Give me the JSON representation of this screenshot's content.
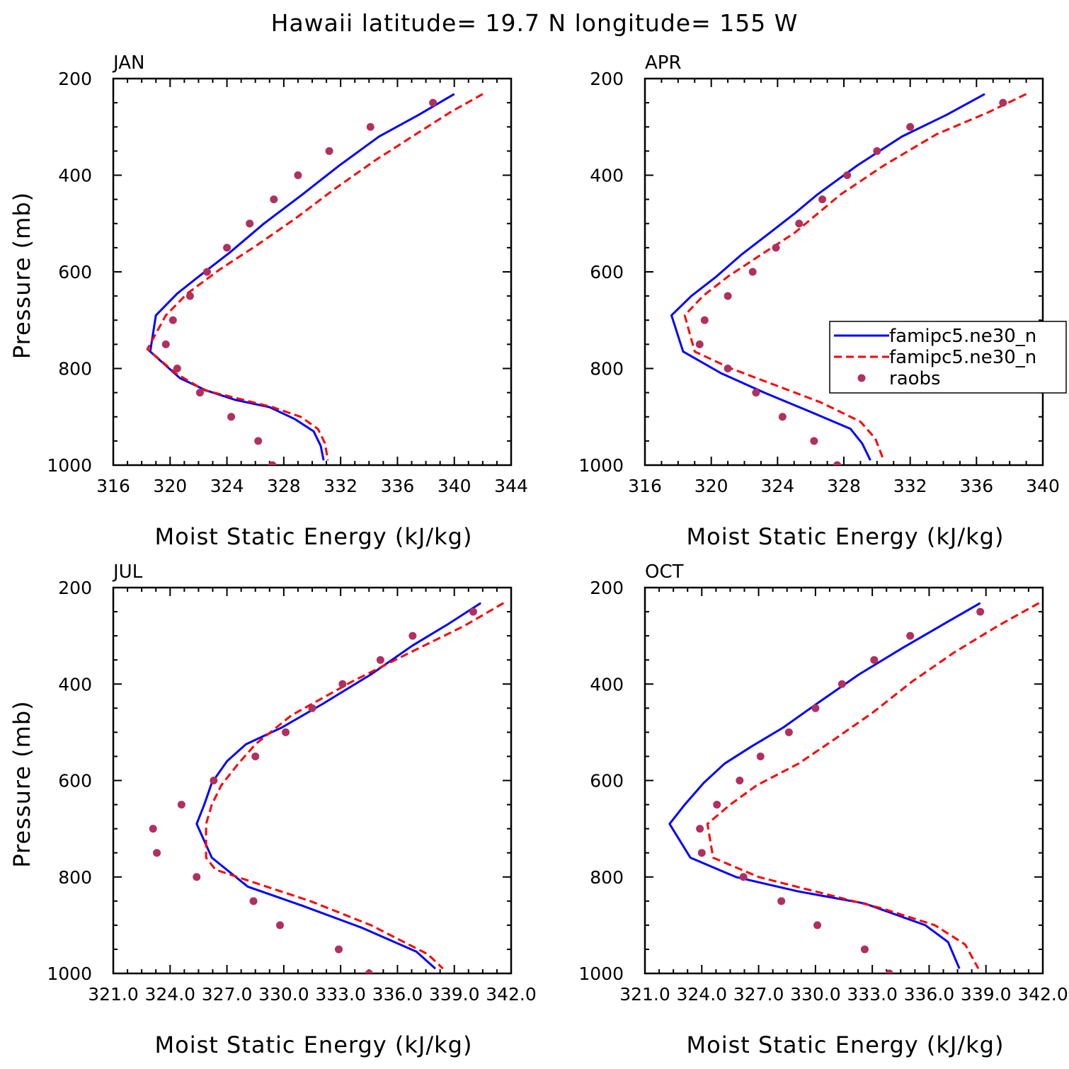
{
  "title": "Hawaii  latitude= 19.7 N longitude= 155 W",
  "colors": {
    "series1": "#0000ff",
    "series2": "#ff0000",
    "raobs": "#b03060"
  },
  "legend": {
    "entries": [
      {
        "label": "famipc5.ne30_n",
        "style": "solid",
        "color": "#0000ff"
      },
      {
        "label": "famipc5.ne30_n",
        "style": "dashed",
        "color": "#ff0000"
      },
      {
        "label": "raobs",
        "style": "marker",
        "color": "#b03060"
      }
    ]
  },
  "chart_data": [
    {
      "type": "line",
      "panel_title": "JAN",
      "xlabel": "Moist Static Energy (kJ/kg)",
      "ylabel": "Pressure (mb)",
      "xlim": [
        316,
        344
      ],
      "ylim": [
        1000,
        200
      ],
      "xticks": [
        316,
        320,
        324,
        328,
        332,
        336,
        340,
        344
      ],
      "xtick_labels": [
        "316",
        "320",
        "324",
        "328",
        "332",
        "336",
        "340",
        "344"
      ],
      "yticks": [
        200,
        400,
        600,
        800,
        1000
      ],
      "ytick_labels": [
        "200",
        "400",
        "600",
        "800",
        "1000"
      ],
      "series": [
        {
          "name": "famipc5.ne30_n",
          "style": "solid",
          "x": [
            340.0,
            337.5,
            334.7,
            331.9,
            329.3,
            326.6,
            324.2,
            322.0,
            320.5,
            319.0,
            318.6,
            320.7,
            322.5,
            324.6,
            327.0,
            328.8,
            330.1,
            330.6,
            330.8
          ],
          "y": [
            232,
            275,
            320,
            380,
            440,
            500,
            560,
            610,
            645,
            690,
            765,
            820,
            845,
            865,
            880,
            905,
            930,
            960,
            990
          ]
        },
        {
          "name": "famipc5.ne30_n",
          "style": "dashed",
          "x": [
            342.0,
            339.7,
            337.3,
            334.4,
            331.5,
            328.8,
            326.1,
            323.5,
            321.2,
            319.7,
            318.4,
            320.4,
            322.4,
            324.5,
            327.2,
            329.2,
            330.4,
            330.9,
            331.1
          ],
          "y": [
            232,
            270,
            315,
            370,
            430,
            490,
            545,
            595,
            645,
            690,
            760,
            810,
            845,
            860,
            880,
            900,
            925,
            955,
            990
          ]
        },
        {
          "name": "raobs",
          "style": "marker",
          "x": [
            338.5,
            334.1,
            331.2,
            329.0,
            327.3,
            325.6,
            324.0,
            322.6,
            321.4,
            320.2,
            319.7,
            320.5,
            322.1,
            324.3,
            326.2,
            327.2
          ],
          "y": [
            250,
            300,
            350,
            400,
            450,
            500,
            550,
            600,
            650,
            700,
            750,
            800,
            850,
            900,
            950,
            1000
          ]
        }
      ]
    },
    {
      "type": "line",
      "panel_title": "APR",
      "xlabel": "Moist Static Energy (kJ/kg)",
      "ylabel": "",
      "xlim": [
        316,
        340
      ],
      "ylim": [
        1000,
        200
      ],
      "xticks": [
        316,
        320,
        324,
        328,
        332,
        336,
        340
      ],
      "xtick_labels": [
        "316",
        "320",
        "324",
        "328",
        "332",
        "336",
        "340"
      ],
      "yticks": [
        200,
        400,
        600,
        800,
        1000
      ],
      "ytick_labels": [
        "200",
        "400",
        "600",
        "800",
        "1000"
      ],
      "series": [
        {
          "name": "famipc5.ne30_n",
          "style": "solid",
          "x": [
            336.5,
            334.2,
            331.5,
            328.8,
            326.4,
            325.0,
            323.5,
            321.8,
            320.3,
            318.8,
            317.6,
            318.3,
            320.6,
            323.2,
            326.0,
            328.4,
            329.1,
            329.6
          ],
          "y": [
            232,
            275,
            320,
            380,
            440,
            480,
            520,
            565,
            610,
            650,
            690,
            765,
            810,
            850,
            890,
            925,
            955,
            990
          ]
        },
        {
          "name": "famipc5.ne30_n",
          "style": "dashed",
          "x": [
            339.0,
            336.7,
            333.6,
            330.4,
            327.8,
            326.4,
            325.0,
            323.2,
            321.0,
            319.5,
            318.4,
            319.0,
            321.2,
            323.9,
            326.6,
            329.0,
            329.9,
            330.4
          ],
          "y": [
            232,
            270,
            315,
            380,
            440,
            480,
            520,
            560,
            610,
            650,
            690,
            765,
            800,
            835,
            870,
            910,
            945,
            990
          ]
        },
        {
          "name": "raobs",
          "style": "marker",
          "x": [
            337.6,
            332.0,
            330.0,
            328.2,
            326.7,
            325.3,
            323.9,
            322.5,
            321.0,
            319.6,
            319.3,
            321.0,
            322.7,
            324.3,
            326.2,
            327.6
          ],
          "y": [
            250,
            300,
            350,
            400,
            450,
            500,
            550,
            600,
            650,
            700,
            750,
            800,
            850,
            900,
            950,
            1000
          ]
        }
      ]
    },
    {
      "type": "line",
      "panel_title": "JUL",
      "xlabel": "Moist Static Energy (kJ/kg)",
      "ylabel": "Pressure (mb)",
      "xlim": [
        321.0,
        342.0
      ],
      "ylim": [
        1000,
        200
      ],
      "xticks": [
        321.0,
        324.0,
        327.0,
        330.0,
        333.0,
        336.0,
        339.0,
        342.0
      ],
      "xtick_labels": [
        "321.0",
        "324.0",
        "327.0",
        "330.0",
        "333.0",
        "336.0",
        "339.0",
        "342.0"
      ],
      "yticks": [
        200,
        400,
        600,
        800,
        1000
      ],
      "ytick_labels": [
        "200",
        "400",
        "600",
        "800",
        "1000"
      ],
      "series": [
        {
          "name": "famipc5.ne30_n",
          "style": "solid",
          "x": [
            340.4,
            338.7,
            336.8,
            334.6,
            332.1,
            329.9,
            328.0,
            327.0,
            326.2,
            325.8,
            325.4,
            326.2,
            328.1,
            331.0,
            334.1,
            337.0,
            338.0
          ],
          "y": [
            232,
            275,
            320,
            380,
            440,
            490,
            525,
            560,
            605,
            650,
            690,
            760,
            820,
            860,
            905,
            955,
            990
          ]
        },
        {
          "name": "famipc5.ne30_n",
          "style": "dashed",
          "x": [
            341.6,
            339.5,
            336.9,
            333.6,
            330.4,
            328.5,
            327.6,
            326.7,
            326.2,
            325.9,
            325.9,
            326.4,
            328.7,
            331.4,
            334.6,
            337.6,
            338.4
          ],
          "y": [
            232,
            280,
            330,
            395,
            465,
            525,
            565,
            610,
            650,
            690,
            760,
            785,
            815,
            850,
            900,
            960,
            990
          ]
        },
        {
          "name": "raobs",
          "style": "marker",
          "x": [
            340.0,
            336.8,
            335.1,
            333.1,
            331.5,
            330.1,
            328.5,
            326.3,
            324.6,
            323.1,
            323.3,
            325.4,
            328.4,
            329.8,
            332.9,
            334.5
          ],
          "y": [
            250,
            300,
            350,
            400,
            450,
            500,
            550,
            600,
            650,
            700,
            750,
            800,
            850,
            900,
            950,
            1000
          ]
        }
      ]
    },
    {
      "type": "line",
      "panel_title": "OCT",
      "xlabel": "Moist Static Energy (kJ/kg)",
      "ylabel": "",
      "xlim": [
        321.0,
        342.0
      ],
      "ylim": [
        1000,
        200
      ],
      "xticks": [
        321.0,
        324.0,
        327.0,
        330.0,
        333.0,
        336.0,
        339.0,
        342.0
      ],
      "xtick_labels": [
        "321.0",
        "324.0",
        "327.0",
        "330.0",
        "333.0",
        "336.0",
        "339.0",
        "342.0"
      ],
      "yticks": [
        200,
        400,
        600,
        800,
        1000
      ],
      "ytick_labels": [
        "200",
        "400",
        "600",
        "800",
        "1000"
      ],
      "series": [
        {
          "name": "famipc5.ne30_n",
          "style": "solid",
          "x": [
            338.7,
            336.8,
            334.6,
            332.3,
            330.1,
            328.3,
            326.6,
            325.2,
            324.1,
            323.1,
            322.3,
            323.4,
            325.8,
            329.1,
            332.6,
            335.8,
            337.0,
            337.6
          ],
          "y": [
            232,
            275,
            325,
            380,
            440,
            490,
            530,
            565,
            605,
            650,
            690,
            760,
            800,
            830,
            855,
            900,
            935,
            990
          ]
        },
        {
          "name": "famipc5.ne30_n",
          "style": "dashed",
          "x": [
            341.8,
            339.6,
            337.3,
            335.1,
            333.0,
            330.8,
            329.1,
            326.9,
            325.5,
            324.3,
            324.6,
            327.0,
            330.5,
            333.5,
            336.3,
            337.9,
            338.6
          ],
          "y": [
            232,
            280,
            335,
            395,
            460,
            520,
            565,
            610,
            650,
            690,
            760,
            800,
            835,
            865,
            900,
            940,
            990
          ]
        },
        {
          "name": "raobs",
          "style": "marker",
          "x": [
            338.7,
            335.0,
            333.1,
            331.4,
            330.0,
            328.6,
            327.1,
            326.0,
            324.8,
            323.9,
            324.0,
            326.2,
            328.2,
            330.1,
            332.6,
            333.9
          ],
          "y": [
            250,
            300,
            350,
            400,
            450,
            500,
            550,
            600,
            650,
            700,
            750,
            800,
            850,
            900,
            950,
            1000
          ]
        }
      ]
    }
  ]
}
